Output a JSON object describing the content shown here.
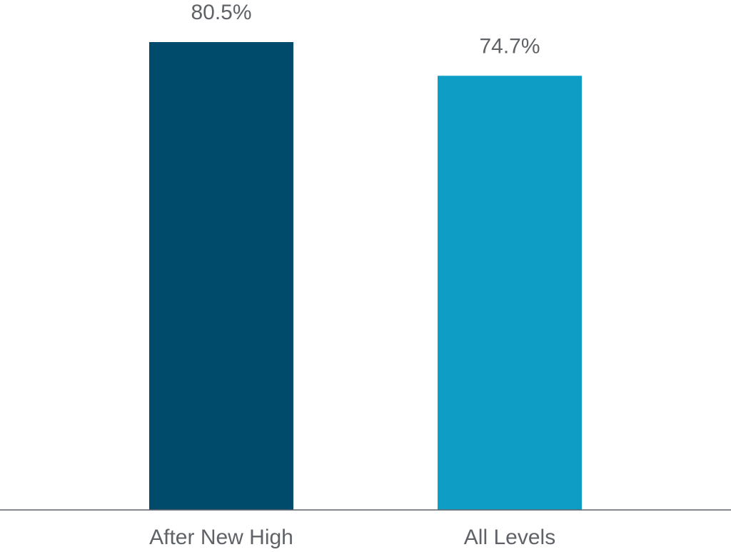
{
  "chart_data": {
    "type": "bar",
    "categories": [
      "After New High",
      "All Levels"
    ],
    "values": [
      80.5,
      74.7
    ],
    "value_labels": [
      "80.5%",
      "74.7%"
    ],
    "colors": [
      "#004a6b",
      "#0e9dc4"
    ],
    "axis_color": "#5f6368",
    "label_color": "#5f6368",
    "ylim": [
      0,
      80.5
    ],
    "grid": false,
    "legend": "none",
    "title": "",
    "xlabel": "",
    "ylabel": ""
  }
}
